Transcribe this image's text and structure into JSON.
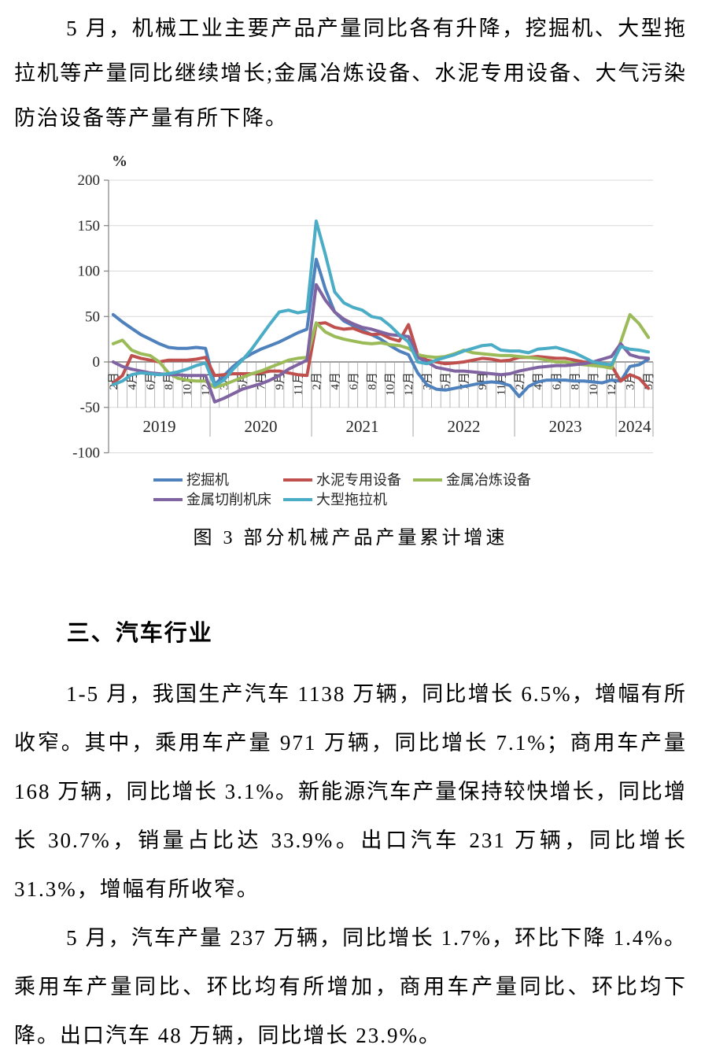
{
  "document": {
    "paragraph1": "5 月，机械工业主要产品产量同比各有升降，挖掘机、大型拖拉机等产量同比继续增长;金属冶炼设备、水泥专用设备、大气污染防治设备等产量有所下降。",
    "section_heading": "三、汽车行业",
    "paragraph2": "1-5 月，我国生产汽车 1138 万辆，同比增长 6.5%，增幅有所收窄。其中，乘用车产量 971 万辆，同比增长 7.1%；商用车产量 168 万辆，同比增长 3.1%。新能源汽车产量保持较快增长，同比增长 30.7%，销量占比达 33.9%。出口汽车 231 万辆，同比增长 31.3%，增幅有所收窄。",
    "paragraph3": "5 月，汽车产量 237 万辆，同比增长 1.7%，环比下降 1.4%。乘用车产量同比、环比均有所增加，商用车产量同比、环比均下降。出口汽车 48 万辆，同比增长 23.9%。"
  },
  "chart_data": {
    "type": "line",
    "title": "图 3 部分机械产品产量累计增速",
    "ylabel": "%",
    "ylim": [
      -100,
      200
    ],
    "yticks": [
      200,
      150,
      100,
      50,
      0,
      -50,
      -100
    ],
    "grid": "horizontal",
    "legend_position": "bottom",
    "month_label_suffix": "月",
    "years": [
      {
        "label": "2019",
        "months": [
          2,
          3,
          4,
          5,
          6,
          7,
          8,
          9,
          10,
          11,
          12
        ],
        "labeled_months": [
          2,
          4,
          6,
          8,
          10,
          12
        ]
      },
      {
        "label": "2020",
        "months": [
          2,
          3,
          4,
          5,
          6,
          7,
          8,
          9,
          10,
          11,
          12
        ],
        "labeled_months": [
          3,
          5,
          7,
          9,
          11
        ]
      },
      {
        "label": "2021",
        "months": [
          2,
          3,
          4,
          5,
          6,
          7,
          8,
          9,
          10,
          11,
          12
        ],
        "labeled_months": [
          2,
          4,
          6,
          8,
          10,
          12
        ]
      },
      {
        "label": "2022",
        "months": [
          2,
          3,
          4,
          5,
          6,
          7,
          8,
          9,
          10,
          11,
          12
        ],
        "labeled_months": [
          3,
          5,
          7,
          9,
          11
        ]
      },
      {
        "label": "2023",
        "months": [
          2,
          3,
          4,
          5,
          6,
          7,
          8,
          9,
          10,
          11,
          12
        ],
        "labeled_months": [
          2,
          4,
          6,
          8,
          10,
          12
        ]
      },
      {
        "label": "2024",
        "months": [
          2,
          3,
          4,
          5
        ],
        "labeled_months": [
          3,
          5
        ]
      }
    ],
    "series": [
      {
        "name": "挖掘机",
        "slug": "excavator",
        "color": "#4F81BD",
        "values": [
          52,
          44,
          37,
          30,
          25,
          20,
          16,
          15,
          15,
          16,
          15,
          -25,
          -15,
          -5,
          3,
          9,
          14,
          18,
          22,
          27,
          32,
          36,
          113,
          80,
          55,
          45,
          40,
          35,
          30,
          25,
          18,
          12,
          8,
          -12,
          -25,
          -30,
          -31,
          -29,
          -27,
          -25,
          -23,
          -22,
          -23,
          -26,
          -38,
          -27,
          -22,
          -20,
          -20,
          -20,
          -21,
          -21,
          -22,
          -23,
          -20,
          -21,
          -5,
          -3,
          3
        ]
      },
      {
        "name": "水泥专用设备",
        "slug": "cement-equipment",
        "color": "#C0504D",
        "values": [
          -23,
          -15,
          7,
          4,
          2,
          0,
          2,
          2,
          2,
          3,
          5,
          -15,
          -14,
          -13,
          -13,
          -13,
          -12,
          -10,
          -10,
          -12,
          -14,
          -15,
          42,
          43,
          38,
          36,
          37,
          33,
          30,
          31,
          26,
          23,
          41,
          8,
          2,
          0,
          -2,
          -1,
          0,
          2,
          4,
          3,
          1,
          2,
          5,
          5,
          6,
          5,
          4,
          4,
          2,
          0,
          -1,
          -2,
          -4,
          -21,
          -14,
          -18,
          -29
        ]
      },
      {
        "name": "金属冶炼设备",
        "slug": "metal-smelting-equipment",
        "color": "#9BBB59",
        "values": [
          20,
          24,
          13,
          9,
          7,
          0,
          -12,
          -18,
          -20,
          -21,
          -21,
          -28,
          -25,
          -21,
          -17,
          -13,
          -10,
          -6,
          -2,
          2,
          4,
          5,
          43,
          33,
          28,
          25,
          23,
          21,
          20,
          21,
          19,
          18,
          15,
          8,
          6,
          5,
          6,
          9,
          13,
          10,
          9,
          8,
          7,
          7,
          6,
          5,
          4,
          2,
          0,
          0,
          -2,
          -3,
          -4,
          -5,
          -7,
          22,
          52,
          42,
          27
        ]
      },
      {
        "name": "金属切削机床",
        "slug": "metal-cutting-machine-tools",
        "color": "#8064A2",
        "values": [
          0,
          -5,
          -8,
          -10,
          -12,
          -13,
          -14,
          -14,
          -15,
          -15,
          -15,
          -44,
          -40,
          -35,
          -30,
          -27,
          -24,
          -20,
          -15,
          -8,
          -3,
          2,
          85,
          68,
          55,
          47,
          42,
          38,
          36,
          33,
          30,
          29,
          28,
          5,
          0,
          -6,
          -8,
          -10,
          -10,
          -11,
          -12,
          -13,
          -14,
          -13,
          -10,
          -8,
          -6,
          -5,
          -4,
          -4,
          -3,
          -2,
          0,
          3,
          6,
          20,
          8,
          5,
          4
        ]
      },
      {
        "name": "大型拖拉机",
        "slug": "large-tractors",
        "color": "#4BACC6",
        "values": [
          -25,
          -21,
          -14,
          -12,
          -13,
          -14,
          -13,
          -11,
          -8,
          -4,
          -1,
          -26,
          -20,
          -8,
          2,
          14,
          28,
          42,
          55,
          57,
          54,
          56,
          155,
          118,
          77,
          65,
          60,
          57,
          50,
          48,
          40,
          30,
          22,
          0,
          -2,
          2,
          5,
          8,
          12,
          15,
          18,
          19,
          13,
          12,
          12,
          10,
          14,
          15,
          16,
          13,
          10,
          5,
          0,
          -2,
          -3,
          17,
          14,
          13,
          11
        ]
      }
    ],
    "legend_rows": [
      [
        "挖掘机",
        "水泥专用设备",
        "金属冶炼设备"
      ],
      [
        "金属切削机床",
        "大型拖拉机"
      ]
    ]
  }
}
